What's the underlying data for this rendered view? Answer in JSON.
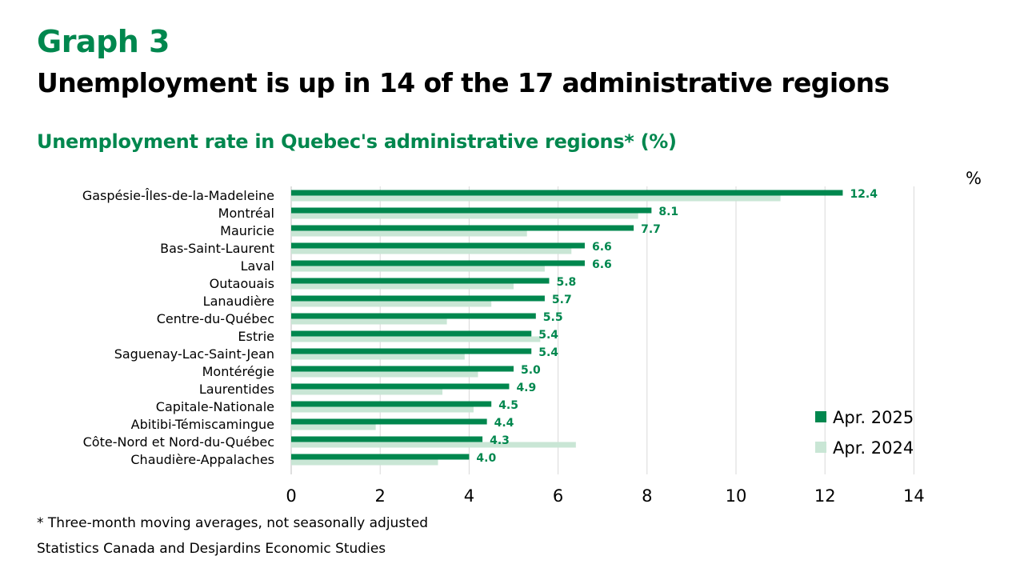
{
  "header": {
    "graph_number": "Graph 3",
    "headline": "Unemployment is up in 14 of the 17 administrative regions"
  },
  "chart_data": {
    "type": "bar",
    "orientation": "horizontal",
    "title": "Unemployment rate in Quebec's administrative regions* (%)",
    "unit": "%",
    "categories": [
      "Gaspésie-Îles-de-la-Madeleine",
      "Montréal",
      "Mauricie",
      "Bas-Saint-Laurent",
      "Laval",
      "Outaouais",
      "Lanaudière",
      "Centre-du-Québec",
      "Estrie",
      "Saguenay-Lac-Saint-Jean",
      "Montérégie",
      "Laurentides",
      "Capitale-Nationale",
      "Abitibi-Témiscamingue",
      "Côte-Nord et Nord-du-Québec",
      "Chaudière-Appalaches"
    ],
    "series": [
      {
        "name": "Apr. 2025",
        "color": "#00874e",
        "values": [
          12.4,
          8.1,
          7.7,
          6.6,
          6.6,
          5.8,
          5.7,
          5.5,
          5.4,
          5.4,
          5.0,
          4.9,
          4.5,
          4.4,
          4.3,
          4.0
        ],
        "labels": [
          "12.4",
          "8.1",
          "7.7",
          "6.6",
          "6.6",
          "5.8",
          "5.7",
          "5.5",
          "5.4",
          "5.4",
          "5.0",
          "4.9",
          "4.5",
          "4.4",
          "4.3",
          "4.0"
        ]
      },
      {
        "name": "Apr. 2024",
        "color": "#c9e6d5",
        "values": [
          11.0,
          7.8,
          5.3,
          6.3,
          5.7,
          5.0,
          4.5,
          3.5,
          5.6,
          3.9,
          4.2,
          3.4,
          4.1,
          1.9,
          6.4,
          3.3
        ]
      }
    ],
    "x_ticks": [
      "0",
      "2",
      "4",
      "6",
      "8",
      "10",
      "12",
      "14"
    ],
    "xlim": [
      0,
      14
    ],
    "grid": "vertical",
    "legend": "bottom-right"
  },
  "footnotes": {
    "note": "* Three-month moving averages, not seasonally adjusted",
    "source": "Statistics Canada and Desjardins Economic Studies"
  }
}
